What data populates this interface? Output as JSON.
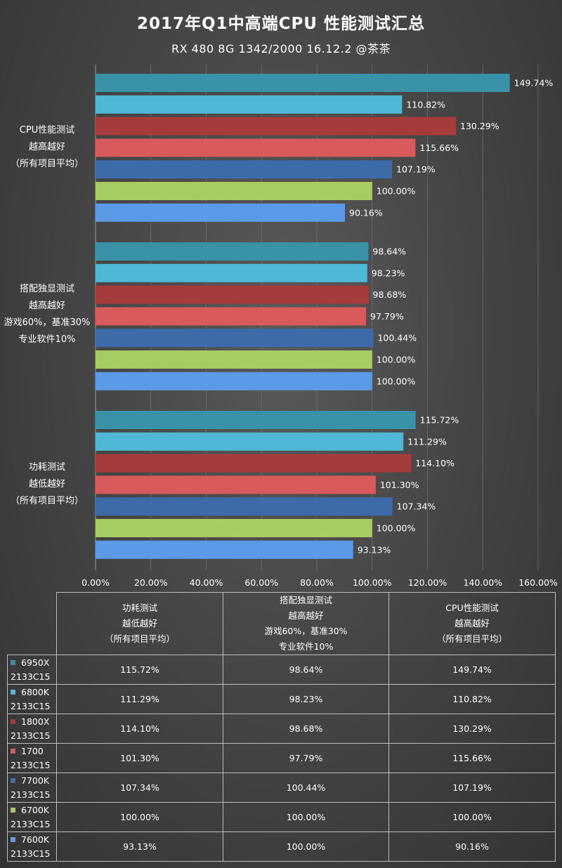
{
  "title": "2017年Q1中高端CPU  性能测试汇总",
  "subtitle": "RX 480  8G  1342/2000  16.12.2  @茶茶",
  "chart_data": {
    "type": "bar",
    "orientation": "horizontal",
    "xlim": [
      0,
      160
    ],
    "ticks": [
      "0.00%",
      "20.00%",
      "40.00%",
      "60.00%",
      "80.00%",
      "100.00%",
      "120.00%",
      "140.00%",
      "160.00%"
    ],
    "tick_values": [
      0,
      20,
      40,
      60,
      80,
      100,
      120,
      140,
      160
    ],
    "grid": true,
    "categories": [
      {
        "label_lines": [
          "CPU性能测试",
          "越高越好",
          "（所有项目平均）"
        ]
      },
      {
        "label_lines": [
          "搭配独显测试",
          "越高越好",
          "游戏60%，基准30%",
          "专业软件10%"
        ]
      },
      {
        "label_lines": [
          "功耗测试",
          "越低越好",
          "（所有项目平均）"
        ]
      }
    ],
    "series": [
      {
        "name": "6950X 2133C15",
        "color": "#3a92a8",
        "values": [
          149.74,
          98.64,
          115.72
        ],
        "labels": [
          "149.74%",
          "98.64%",
          "115.72%"
        ]
      },
      {
        "name": "6800K 2133C15",
        "color": "#4fb8d6",
        "values": [
          110.82,
          98.23,
          111.29
        ],
        "labels": [
          "110.82%",
          "98.23%",
          "111.29%"
        ]
      },
      {
        "name": "1800X 2133C15",
        "color": "#a53b3b",
        "values": [
          130.29,
          98.68,
          114.1
        ],
        "labels": [
          "130.29%",
          "98.68%",
          "114.10%"
        ]
      },
      {
        "name": "1700 2133C15",
        "color": "#d85a5a",
        "values": [
          115.66,
          97.79,
          101.3
        ],
        "labels": [
          "115.66%",
          "97.79%",
          "101.30%"
        ]
      },
      {
        "name": "7700K 2133C15",
        "color": "#3d6aa8",
        "values": [
          107.19,
          100.44,
          107.34
        ],
        "labels": [
          "107.19%",
          "100.44%",
          "107.34%"
        ]
      },
      {
        "name": "6700K 2133C15",
        "color": "#a6cc62",
        "values": [
          100.0,
          100.0,
          100.0
        ],
        "labels": [
          "100.00%",
          "100.00%",
          "100.00%"
        ]
      },
      {
        "name": "7600K 2133C15",
        "color": "#5b9ae6",
        "values": [
          90.16,
          100.0,
          93.13
        ],
        "labels": [
          "90.16%",
          "100.00%",
          "93.13%"
        ]
      }
    ]
  },
  "table": {
    "headers": [
      [
        "功耗测试",
        "越低越好",
        "（所有项目平均）"
      ],
      [
        "搭配独显测试",
        "越高越好",
        "游戏60%，基准30%",
        "专业软件10%"
      ],
      [
        "CPU性能测试",
        "越高越好",
        "（所有项目平均）"
      ]
    ],
    "rows": [
      {
        "name1": "6950X",
        "name2": "2133C15",
        "color": "#3a92a8",
        "cells": [
          "115.72%",
          "98.64%",
          "149.74%"
        ]
      },
      {
        "name1": "6800K",
        "name2": "2133C15",
        "color": "#4fb8d6",
        "cells": [
          "111.29%",
          "98.23%",
          "110.82%"
        ]
      },
      {
        "name1": "1800X",
        "name2": "2133C15",
        "color": "#a53b3b",
        "cells": [
          "114.10%",
          "98.68%",
          "130.29%"
        ]
      },
      {
        "name1": "1700",
        "name2": "2133C15",
        "color": "#d85a5a",
        "cells": [
          "101.30%",
          "97.79%",
          "115.66%"
        ]
      },
      {
        "name1": "7700K",
        "name2": "2133C15",
        "color": "#3d6aa8",
        "cells": [
          "107.34%",
          "100.44%",
          "107.19%"
        ]
      },
      {
        "name1": "6700K",
        "name2": "2133C15",
        "color": "#a6cc62",
        "cells": [
          "100.00%",
          "100.00%",
          "100.00%"
        ]
      },
      {
        "name1": "7600K",
        "name2": "2133C15",
        "color": "#5b9ae6",
        "cells": [
          "93.13%",
          "100.00%",
          "90.16%"
        ]
      }
    ]
  }
}
